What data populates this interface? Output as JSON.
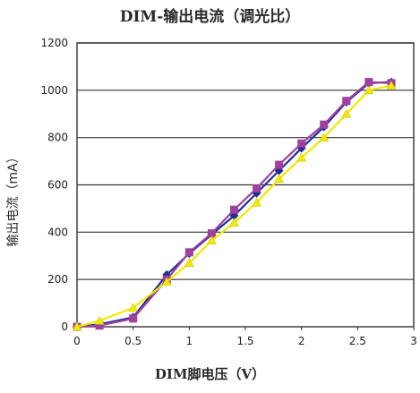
{
  "chart_data": {
    "type": "line",
    "title": "DIM-输出电流（调光比）",
    "xlabel": "DIM脚电压（V）",
    "ylabel": "输出电流（mA）",
    "xlim": [
      0,
      3
    ],
    "ylim": [
      0,
      1200
    ],
    "xticks": [
      0,
      0.5,
      1,
      1.5,
      2,
      2.5,
      3
    ],
    "xtick_labels": [
      "0",
      "0.5",
      "1",
      "1.5",
      "2",
      "2.5",
      "3"
    ],
    "yticks": [
      0,
      200,
      400,
      600,
      800,
      1000,
      1200
    ],
    "ytick_labels": [
      "0",
      "200",
      "400",
      "600",
      "800",
      "1000",
      "1200"
    ],
    "grid": "horizontal",
    "legend": "none",
    "series": [
      {
        "color": "#1f2f8f",
        "marker": "diamond",
        "x": [
          0,
          0.2,
          0.5,
          0.8,
          1.0,
          1.2,
          1.4,
          1.6,
          1.8,
          2.0,
          2.2,
          2.4,
          2.6,
          2.8
        ],
        "y": [
          0,
          10,
          40,
          220,
          310,
          390,
          470,
          565,
          660,
          755,
          845,
          950,
          1030,
          1035
        ]
      },
      {
        "color": "#a040a0",
        "marker": "square",
        "x": [
          0,
          0.2,
          0.5,
          0.8,
          1.0,
          1.2,
          1.4,
          1.6,
          1.8,
          2.0,
          2.2,
          2.4,
          2.6,
          2.8
        ],
        "y": [
          0,
          5,
          35,
          200,
          315,
          395,
          495,
          585,
          685,
          775,
          855,
          955,
          1035,
          1030
        ]
      },
      {
        "color": "#f2e800",
        "marker": "triangle",
        "x": [
          0,
          0.2,
          0.5,
          0.8,
          1.0,
          1.2,
          1.4,
          1.6,
          1.8,
          2.0,
          2.2,
          2.4,
          2.6,
          2.8
        ],
        "y": [
          0,
          25,
          80,
          190,
          270,
          365,
          440,
          525,
          625,
          715,
          800,
          900,
          1000,
          1020
        ]
      }
    ]
  }
}
